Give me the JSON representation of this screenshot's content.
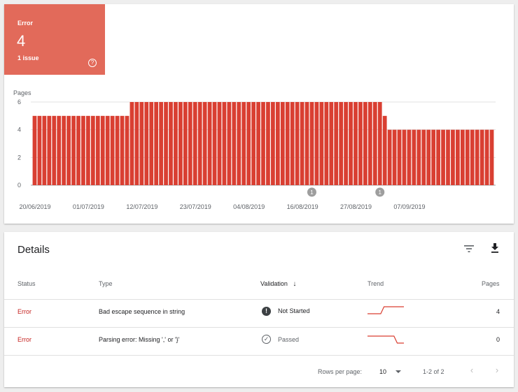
{
  "summary": {
    "label": "Error",
    "value": "4",
    "sublabel": "1 issue",
    "help_icon": "help-circle-icon",
    "color": "#e26a5a"
  },
  "chart_data": {
    "type": "bar",
    "ylabel": "Pages",
    "ylim": [
      0,
      6
    ],
    "yticks": [
      0,
      2,
      4,
      6
    ],
    "color": "#d93f32",
    "grid": true,
    "x_tick_labels": [
      "20/06/2019",
      "01/07/2019",
      "12/07/2019",
      "23/07/2019",
      "04/08/2019",
      "16/08/2019",
      "27/08/2019",
      "07/09/2019"
    ],
    "start_date": "2019-06-20",
    "values": [
      5,
      5,
      5,
      5,
      5,
      5,
      5,
      5,
      5,
      5,
      5,
      5,
      5,
      5,
      5,
      5,
      5,
      5,
      5,
      5,
      6,
      6,
      6,
      6,
      6,
      6,
      6,
      6,
      6,
      6,
      6,
      6,
      6,
      6,
      6,
      6,
      6,
      6,
      6,
      6,
      6,
      6,
      6,
      6,
      6,
      6,
      6,
      6,
      6,
      6,
      6,
      6,
      6,
      6,
      6,
      6,
      6,
      6,
      6,
      6,
      6,
      6,
      6,
      6,
      6,
      6,
      6,
      6,
      6,
      6,
      6,
      6,
      5,
      4,
      4,
      4,
      4,
      4,
      4,
      4,
      4,
      4,
      4,
      4,
      4,
      4,
      4,
      4,
      4,
      4,
      4,
      4,
      4,
      4,
      4
    ],
    "annotations": [
      {
        "label": "1",
        "date": "2019-08-16"
      },
      {
        "label": "1",
        "date": "2019-08-30"
      }
    ]
  },
  "details": {
    "title": "Details",
    "filter_icon": "filter-icon",
    "download_icon": "download-icon",
    "columns": {
      "status": "Status",
      "type": "Type",
      "validation": "Validation",
      "validation_sort_icon": "arrow-down-icon",
      "trend": "Trend",
      "pages": "Pages"
    },
    "rows": [
      {
        "status": "Error",
        "type": "Bad escape sequence in string",
        "validation": "Not Started",
        "validation_icon": "!",
        "trend": [
          4,
          4,
          4,
          4,
          4,
          5,
          5,
          5,
          5,
          5,
          5,
          5
        ],
        "pages": "4"
      },
      {
        "status": "Error",
        "type": "Parsing error: Missing ',' or '}'",
        "validation": "Passed",
        "validation_icon": "✓",
        "trend": [
          1,
          1,
          1,
          1,
          1,
          1,
          1,
          1,
          1,
          0,
          0,
          0
        ],
        "pages": "0"
      }
    ],
    "footer": {
      "rows_per_page_label": "Rows per page:",
      "rows_per_page_value": "10",
      "range": "1-2 of 2",
      "prev_icon": "chevron-left-icon",
      "next_icon": "chevron-right-icon"
    }
  }
}
